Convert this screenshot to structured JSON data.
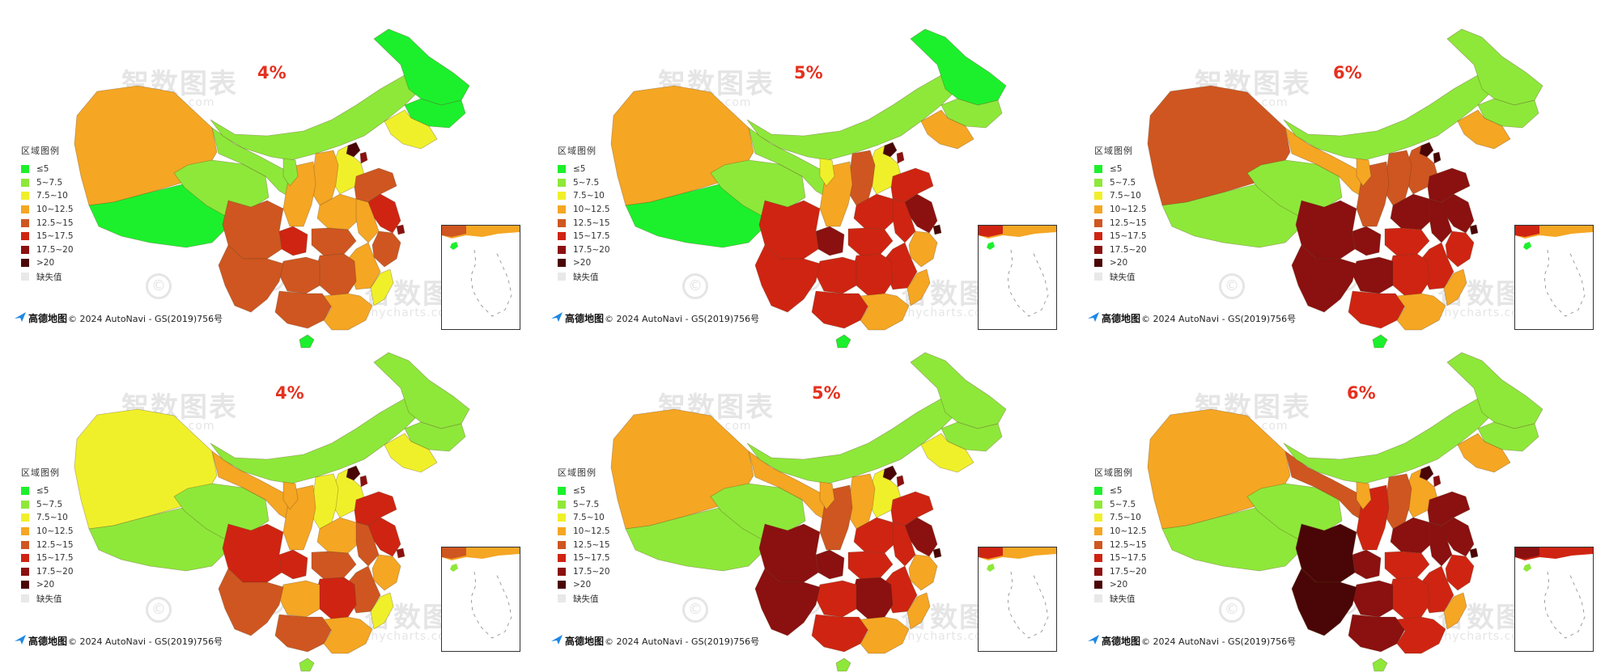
{
  "legend": {
    "title": "区域图例",
    "items": [
      {
        "label": "≤5",
        "color": "#1cf02c"
      },
      {
        "label": "5~7.5",
        "color": "#8ee83a"
      },
      {
        "label": "7.5~10",
        "color": "#f0f02a"
      },
      {
        "label": "10~12.5",
        "color": "#f5a623"
      },
      {
        "label": "12.5~15",
        "color": "#cf5620"
      },
      {
        "label": "15~17.5",
        "color": "#cf2412"
      },
      {
        "label": "17.5~20",
        "color": "#8b1010"
      },
      {
        "label": ">20",
        "color": "#4a0606"
      },
      {
        "label": "缺失值",
        "color": "#e8e8e8"
      }
    ]
  },
  "attribution": {
    "logo": "高德地图",
    "text": "© 2024 AutoNavi - GS(2019)756号"
  },
  "watermark": {
    "cn": "智数图表",
    "en": "zhycharts.com",
    "symbol": "©"
  },
  "panels": [
    {
      "label": "4%",
      "fills": {
        "xj": 3,
        "xz": 0,
        "qh": 1,
        "gs": 1,
        "nm": 1,
        "hlj": 0,
        "jl": 0,
        "ln": 2,
        "bj": 7,
        "tj": 6,
        "hb": 2,
        "sd": 4,
        "sx": 3,
        "sn": 3,
        "nx": 1,
        "hn": 3,
        "js": 5,
        "ah": 3,
        "sh": 6,
        "zj": 4,
        "sc": 4,
        "cq": 5,
        "hub": 4,
        "hun": 4,
        "jx": 3,
        "fj": 2,
        "gd": 3,
        "gx": 4,
        "gz": 4,
        "yn": 4,
        "hi": 0
      }
    },
    {
      "label": "5%",
      "fills": {
        "xj": 3,
        "xz": 0,
        "qh": 1,
        "gs": 1,
        "nm": 1,
        "hlj": 0,
        "jl": 1,
        "ln": 3,
        "bj": 7,
        "tj": 6,
        "hb": 2,
        "sd": 5,
        "sx": 4,
        "sn": 3,
        "nx": 2,
        "hn": 5,
        "js": 6,
        "ah": 5,
        "sh": 7,
        "zj": 3,
        "sc": 5,
        "cq": 6,
        "hub": 5,
        "hun": 5,
        "jx": 5,
        "fj": 3,
        "gd": 3,
        "gx": 5,
        "gz": 5,
        "yn": 5,
        "hi": 0
      }
    },
    {
      "label": "6%",
      "fills": {
        "xj": 4,
        "xz": 1,
        "qh": 1,
        "gs": 3,
        "nm": 1,
        "hlj": 1,
        "jl": 1,
        "ln": 3,
        "bj": 7,
        "tj": 7,
        "hb": 4,
        "sd": 6,
        "sx": 4,
        "sn": 4,
        "nx": 3,
        "hn": 6,
        "js": 6,
        "ah": 6,
        "sh": 7,
        "zj": 5,
        "sc": 6,
        "cq": 6,
        "hub": 5,
        "hun": 5,
        "jx": 5,
        "fj": 3,
        "gd": 3,
        "gx": 5,
        "gz": 6,
        "yn": 6,
        "hi": 0
      }
    },
    {
      "label": "4%",
      "fills": {
        "xj": 2,
        "xz": 1,
        "qh": 1,
        "gs": 3,
        "nm": 1,
        "hlj": 1,
        "jl": 1,
        "ln": 2,
        "bj": 7,
        "tj": 6,
        "hb": 2,
        "sd": 5,
        "sx": 2,
        "sn": 3,
        "nx": 3,
        "hn": 3,
        "js": 5,
        "ah": 4,
        "sh": 6,
        "zj": 3,
        "sc": 5,
        "cq": 5,
        "hub": 4,
        "hun": 5,
        "jx": 4,
        "fj": 2,
        "gd": 3,
        "gx": 4,
        "gz": 3,
        "yn": 4,
        "hi": 1
      }
    },
    {
      "label": "5%",
      "fills": {
        "xj": 3,
        "xz": 1,
        "qh": 1,
        "gs": 3,
        "nm": 1,
        "hlj": 1,
        "jl": 1,
        "ln": 2,
        "bj": 7,
        "tj": 6,
        "hb": 2,
        "sd": 5,
        "sx": 3,
        "sn": 4,
        "nx": 3,
        "hn": 5,
        "js": 6,
        "ah": 5,
        "sh": 7,
        "zj": 3,
        "sc": 6,
        "cq": 6,
        "hub": 5,
        "hun": 6,
        "jx": 5,
        "fj": 3,
        "gd": 3,
        "gx": 5,
        "gz": 5,
        "yn": 6,
        "hi": 1
      }
    },
    {
      "label": "6%",
      "fills": {
        "xj": 3,
        "xz": 1,
        "qh": 1,
        "gs": 4,
        "nm": 1,
        "hlj": 1,
        "jl": 1,
        "ln": 3,
        "bj": 7,
        "tj": 6,
        "hb": 3,
        "sd": 6,
        "sx": 4,
        "sn": 5,
        "nx": 3,
        "hn": 6,
        "js": 6,
        "ah": 6,
        "sh": 7,
        "zj": 5,
        "sc": 7,
        "cq": 6,
        "hub": 5,
        "hun": 5,
        "jx": 5,
        "fj": 3,
        "gd": 5,
        "gx": 6,
        "gz": 6,
        "yn": 7,
        "hi": 1
      }
    }
  ]
}
